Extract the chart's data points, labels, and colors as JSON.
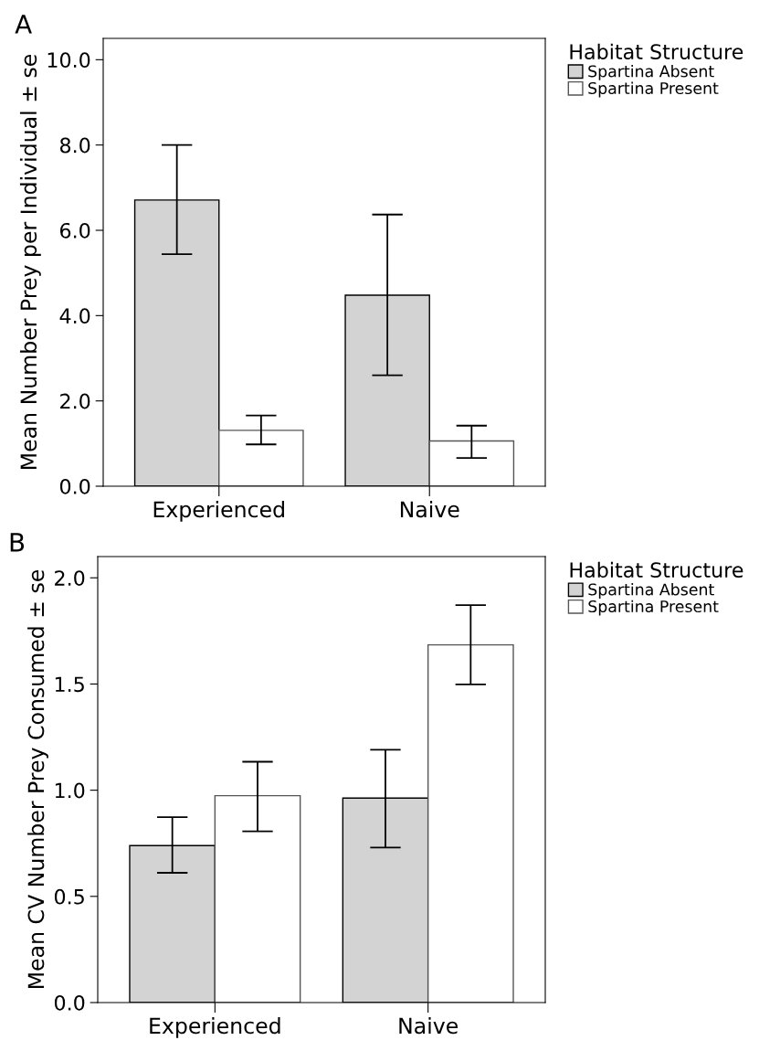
{
  "chart_data": [
    {
      "type": "bar",
      "title": "A",
      "ylabel": "Mean Number Prey per Individual ± se",
      "legend_title": "Habitat Structure",
      "legend": "top right",
      "categories": [
        "Experienced",
        "Naive"
      ],
      "series": [
        {
          "name": "Spartina Absent",
          "color": "#d3d3d3",
          "values": [
            6.71,
            4.48
          ],
          "errors": [
            [
              5.44,
              8.0
            ],
            [
              2.6,
              6.37
            ]
          ]
        },
        {
          "name": "Spartina Present",
          "color": "#ffffff",
          "values": [
            1.31,
            1.06
          ],
          "errors": [
            [
              0.98,
              1.66
            ],
            [
              0.66,
              1.42
            ]
          ]
        }
      ],
      "ylim": [
        0,
        10.5
      ],
      "yticks": [
        {
          "value": 0,
          "label": "0.0"
        },
        {
          "value": 2,
          "label": "2.0"
        },
        {
          "value": 4,
          "label": "4.0"
        },
        {
          "value": 6,
          "label": "6.0"
        },
        {
          "value": 8,
          "label": "8.0"
        },
        {
          "value": 10,
          "label": "10.0"
        }
      ],
      "grid": false
    },
    {
      "type": "bar",
      "title": "B",
      "ylabel": "Mean CV Number Prey Consumed ± se",
      "legend_title": "Habitat Structure",
      "legend": "top right",
      "categories": [
        "Experienced",
        "Naive"
      ],
      "series": [
        {
          "name": "Spartina Absent",
          "color": "#d3d3d3",
          "values": [
            0.739,
            0.963
          ],
          "errors": [
            [
              0.611,
              0.873
            ],
            [
              0.73,
              1.19
            ]
          ]
        },
        {
          "name": "Spartina Present",
          "color": "#ffffff",
          "values": [
            0.974,
            1.684
          ],
          "errors": [
            [
              0.806,
              1.134
            ],
            [
              1.498,
              1.871
            ]
          ]
        }
      ],
      "ylim": [
        0,
        2.1
      ],
      "yticks": [
        {
          "value": 0,
          "label": "0.0"
        },
        {
          "value": 0.5,
          "label": "0.5"
        },
        {
          "value": 1,
          "label": "1.0"
        },
        {
          "value": 1.5,
          "label": "1.5"
        },
        {
          "value": 2,
          "label": "2.0"
        }
      ],
      "grid": false
    }
  ]
}
